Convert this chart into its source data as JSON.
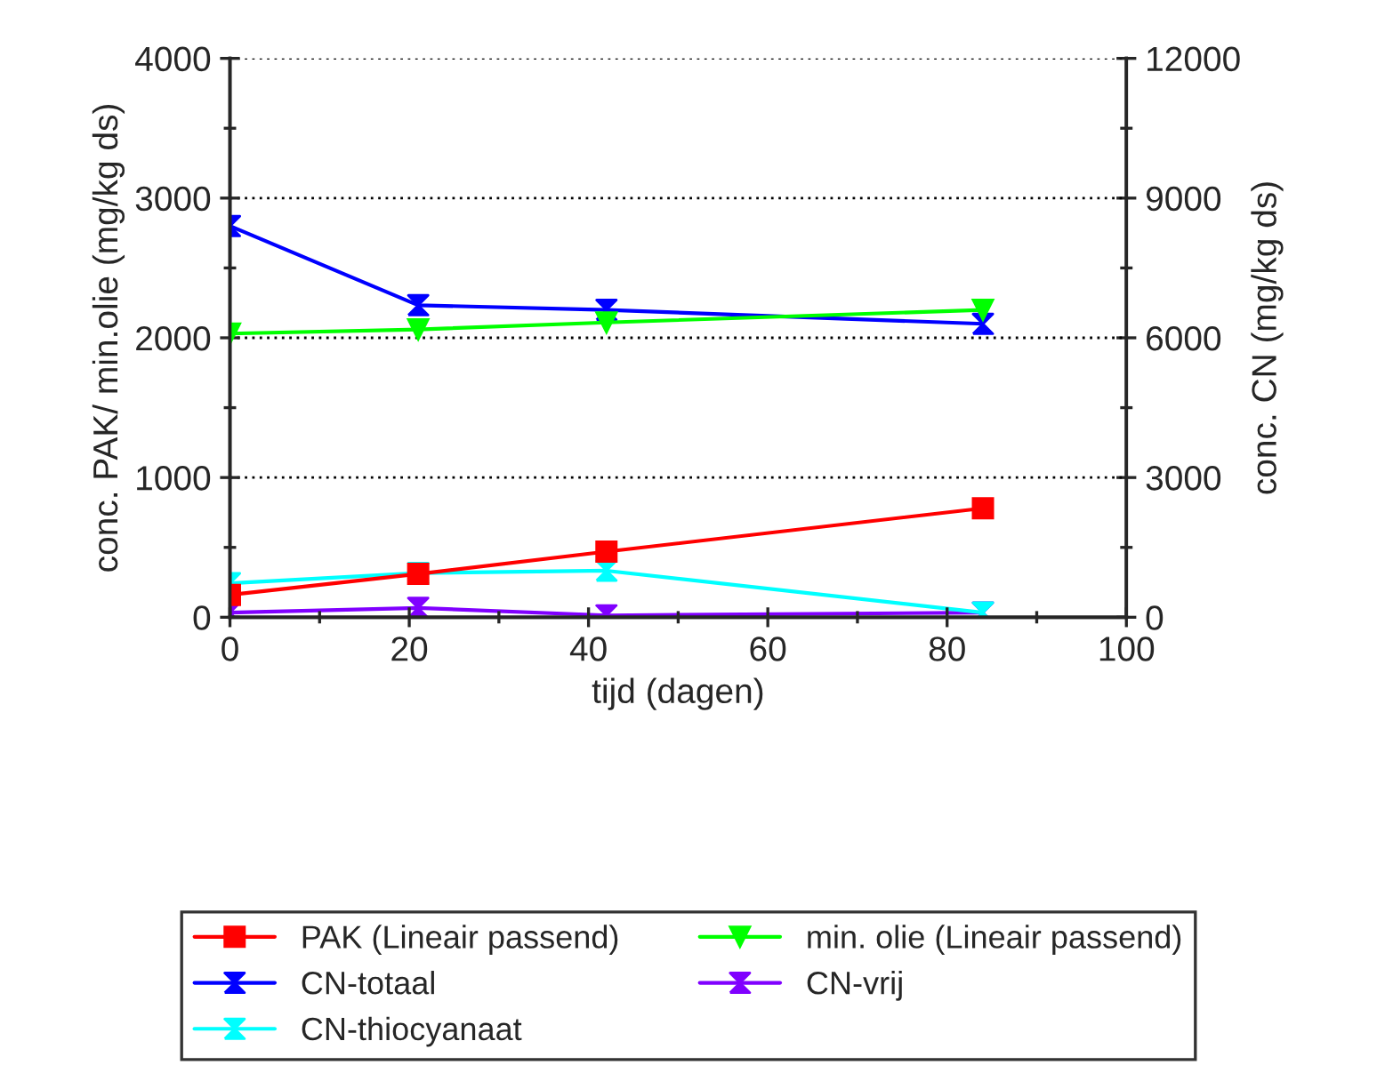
{
  "chart_data": {
    "type": "line",
    "xlabel": "tijd (dagen)",
    "ylabel": "conc. PAK/ min.olie (mg/kg ds)",
    "y2label": "conc. CN (mg/kg ds)",
    "xlim": [
      0,
      100
    ],
    "xticks": [
      0,
      20,
      40,
      60,
      80,
      100
    ],
    "ylim": [
      0,
      4000
    ],
    "yticks": [
      0,
      1000,
      2000,
      3000,
      4000
    ],
    "y2lim": [
      0,
      12000
    ],
    "y2ticks": [
      0,
      3000,
      6000,
      9000,
      12000
    ],
    "grid": "y",
    "legend": "bottom",
    "series": [
      {
        "name": "PAK (Lineair passend)",
        "color": "#ff0000",
        "marker": "square",
        "x": [
          0,
          21,
          42,
          84
        ],
        "values": [
          160,
          310,
          470,
          780
        ]
      },
      {
        "name": "min. olie (Lineair passend)",
        "color": "#00ff00",
        "marker": "triangle",
        "x": [
          0,
          21,
          42,
          84
        ],
        "values": [
          2030,
          2060,
          2110,
          2200
        ]
      },
      {
        "name": "CN-totaal",
        "color": "#0000ff",
        "marker": "diamond",
        "axis": "y2",
        "x": [
          0,
          21,
          42,
          84
        ],
        "values": [
          8400,
          6700,
          6600,
          6300
        ]
      },
      {
        "name": "CN-vrij",
        "color": "#8000ff",
        "marker": "diamond",
        "axis": "y2",
        "x": [
          0,
          21,
          42,
          84
        ],
        "values": [
          100,
          200,
          40,
          100
        ]
      },
      {
        "name": "CN-thiocyanaat",
        "color": "#00ffff",
        "marker": "diamond",
        "axis": "y2",
        "x": [
          0,
          21,
          42,
          84
        ],
        "values": [
          730,
          950,
          1000,
          100
        ]
      }
    ]
  }
}
